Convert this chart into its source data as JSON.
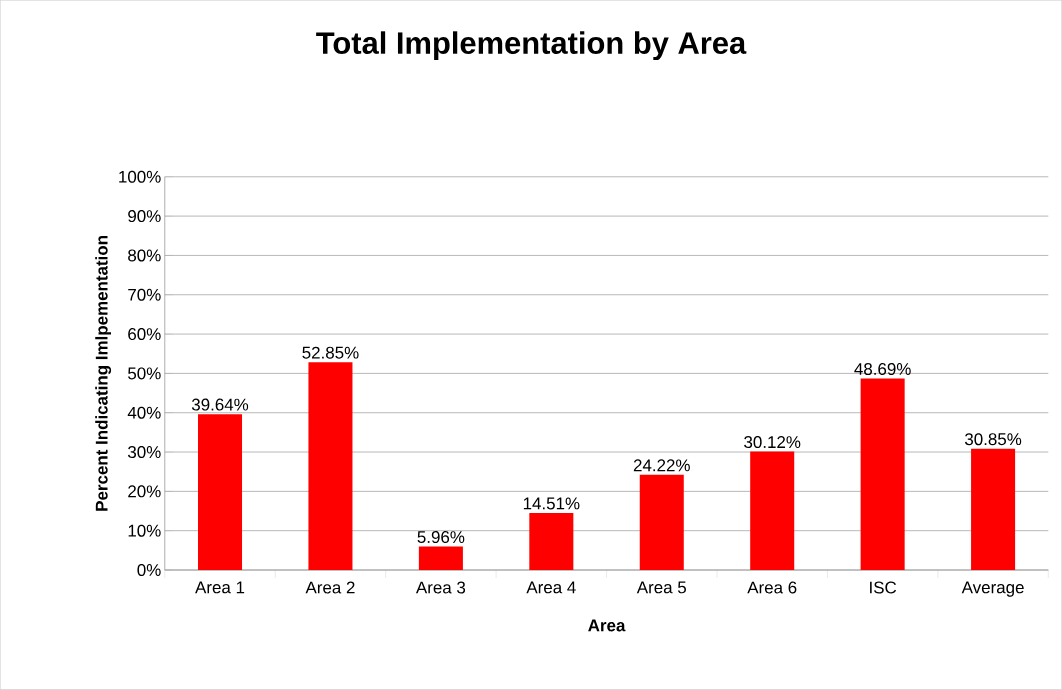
{
  "chart_data": {
    "type": "bar",
    "title": "Total Implementation by Area",
    "xlabel": "Area",
    "ylabel": "Percent Indicating Imlpementation",
    "categories": [
      "Area 1",
      "Area 2",
      "Area 3",
      "Area 4",
      "Area 5",
      "Area 6",
      "ISC",
      "Average"
    ],
    "values": [
      39.64,
      52.85,
      5.96,
      14.51,
      24.22,
      30.12,
      48.69,
      30.85
    ],
    "value_labels": [
      "39.64%",
      "52.85%",
      "5.96%",
      "14.51%",
      "24.22%",
      "30.12%",
      "48.69%",
      "30.85%"
    ],
    "color": "#ff0000",
    "ylim": [
      0,
      100
    ],
    "yticks": [
      {
        "value": 0,
        "label": "0%"
      },
      {
        "value": 10,
        "label": "10%"
      },
      {
        "value": 20,
        "label": "20%"
      },
      {
        "value": 30,
        "label": "30%"
      },
      {
        "value": 40,
        "label": "40%"
      },
      {
        "value": 50,
        "label": "50%"
      },
      {
        "value": 60,
        "label": "60%"
      },
      {
        "value": 70,
        "label": "70%"
      },
      {
        "value": 80,
        "label": "80%"
      },
      {
        "value": 90,
        "label": "90%"
      },
      {
        "value": 100,
        "label": "100%"
      }
    ],
    "grid": "y"
  }
}
